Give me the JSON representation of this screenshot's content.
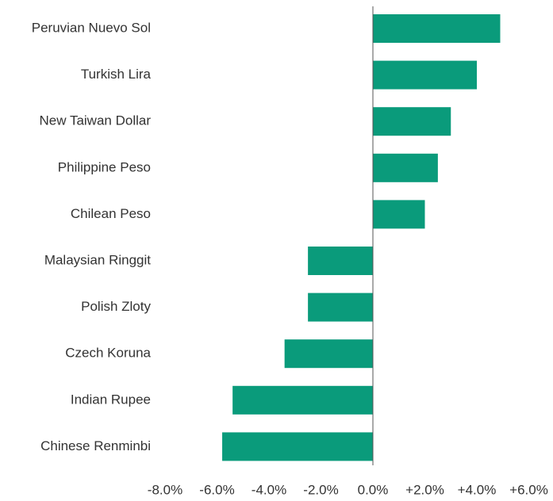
{
  "chart_data": {
    "type": "bar",
    "orientation": "horizontal",
    "categories": [
      "Peruvian Nuevo Sol",
      "Turkish Lira",
      "New Taiwan Dollar",
      "Philippine Peso",
      "Chilean Peso",
      "Malaysian Ringgit",
      "Polish Zloty",
      "Czech Koruna",
      "Indian Rupee",
      "Chinese Renminbi"
    ],
    "values": [
      4.9,
      4.0,
      3.0,
      2.5,
      2.0,
      -2.5,
      -2.5,
      -3.4,
      -5.4,
      -5.8
    ],
    "color": "#0a9b7b",
    "xlim": [
      -8,
      6
    ],
    "xticks": [
      {
        "value": -8,
        "label": "-8.0%"
      },
      {
        "value": -6,
        "label": "-6.0%"
      },
      {
        "value": -4,
        "label": "-4.0%"
      },
      {
        "value": -2,
        "label": "-2.0%"
      },
      {
        "value": 0,
        "label": "0.0%"
      },
      {
        "value": 2,
        "label": "+2.0%"
      },
      {
        "value": 4,
        "label": "+4.0%"
      },
      {
        "value": 6,
        "label": "+6.0%"
      }
    ],
    "grid": false
  }
}
